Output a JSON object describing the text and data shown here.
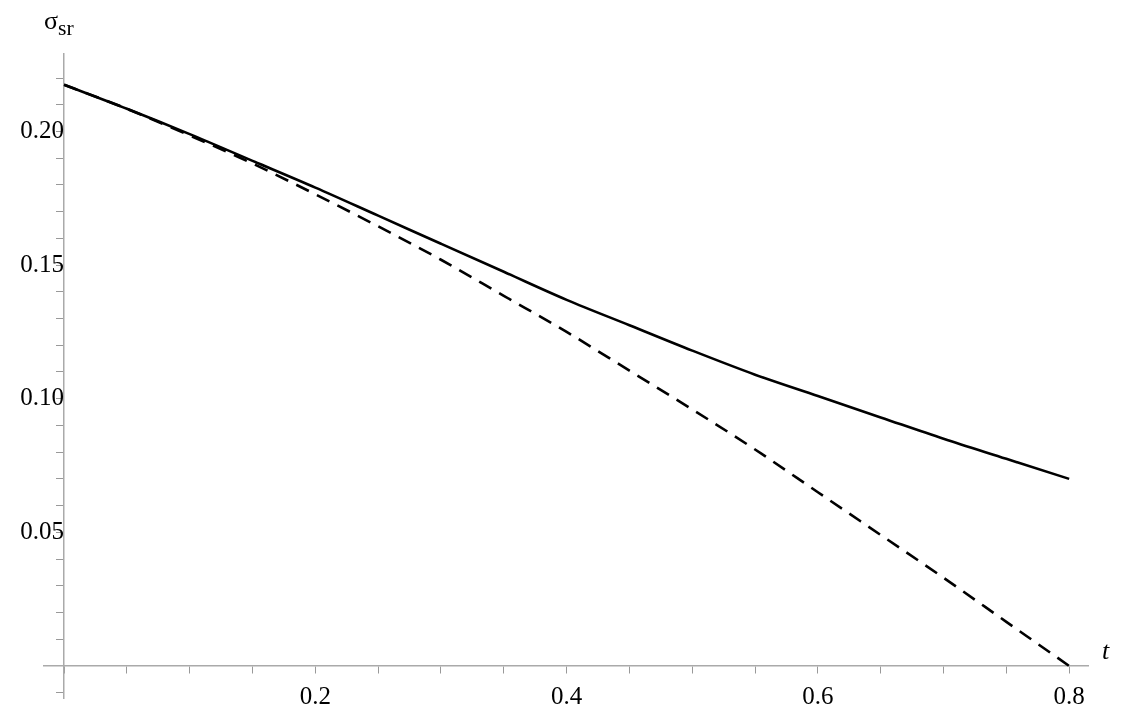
{
  "chart_data": {
    "type": "line",
    "xlabel": "t",
    "ylabel": "σ$_{sr}$",
    "x": [
      0,
      0.05,
      0.1,
      0.15,
      0.2,
      0.25,
      0.3,
      0.35,
      0.4,
      0.45,
      0.5,
      0.55,
      0.6,
      0.65,
      0.7,
      0.75,
      0.8
    ],
    "series": [
      {
        "color": "#000000",
        "line_style": "solid",
        "values": [
          0.2175,
          0.2085,
          0.199,
          0.189,
          0.179,
          0.1685,
          0.158,
          0.1475,
          0.137,
          0.1275,
          0.118,
          0.109,
          0.101,
          0.093,
          0.085,
          0.0775,
          0.07
        ]
      },
      {
        "color": "#000000",
        "line_style": "dashed",
        "values": [
          0.2175,
          0.2085,
          0.1985,
          0.188,
          0.1765,
          0.1645,
          0.152,
          0.1385,
          0.125,
          0.1105,
          0.096,
          0.081,
          0.065,
          0.049,
          0.033,
          0.0165,
          0.0
        ]
      }
    ],
    "xlim": [
      -0.016,
      0.815
    ],
    "xticks": [
      {
        "value": 0,
        "label": null
      },
      {
        "value": 0.05,
        "label": null
      },
      {
        "value": 0.1,
        "label": null
      },
      {
        "value": 0.15,
        "label": null
      },
      0.2,
      {
        "value": 0.25,
        "label": null
      },
      {
        "value": 0.3,
        "label": null
      },
      {
        "value": 0.35,
        "label": null
      },
      0.4,
      {
        "value": 0.45,
        "label": null
      },
      {
        "value": 0.5,
        "label": null
      },
      {
        "value": 0.55,
        "label": null
      },
      0.6,
      {
        "value": 0.65,
        "label": null
      },
      {
        "value": 0.7,
        "label": null
      },
      {
        "value": 0.75,
        "label": null
      },
      0.8
    ],
    "ylim": [
      -0.012,
      0.229
    ],
    "yticks": [
      {
        "value": -0.01,
        "label": null
      },
      {
        "value": 0,
        "label": null
      },
      {
        "value": 0.01,
        "label": null
      },
      {
        "value": 0.02,
        "label": null
      },
      {
        "value": 0.03,
        "label": null
      },
      {
        "value": 0.04,
        "label": null
      },
      0.05,
      {
        "value": 0.06,
        "label": null
      },
      {
        "value": 0.07,
        "label": null
      },
      {
        "value": 0.08,
        "label": null
      },
      {
        "value": 0.09,
        "label": null
      },
      {
        "value": 0.1,
        "label": "0.10"
      },
      {
        "value": 0.11,
        "label": null
      },
      {
        "value": 0.12,
        "label": null
      },
      {
        "value": 0.13,
        "label": null
      },
      {
        "value": 0.14,
        "label": null
      },
      0.15,
      {
        "value": 0.16,
        "label": null
      },
      {
        "value": 0.17,
        "label": null
      },
      {
        "value": 0.18,
        "label": null
      },
      {
        "value": 0.19,
        "label": null
      },
      {
        "value": 0.2,
        "label": "0.20"
      },
      {
        "value": 0.21,
        "label": null
      },
      {
        "value": 0.22,
        "label": null
      }
    ],
    "grid": false,
    "legend": false,
    "marker": "none"
  }
}
